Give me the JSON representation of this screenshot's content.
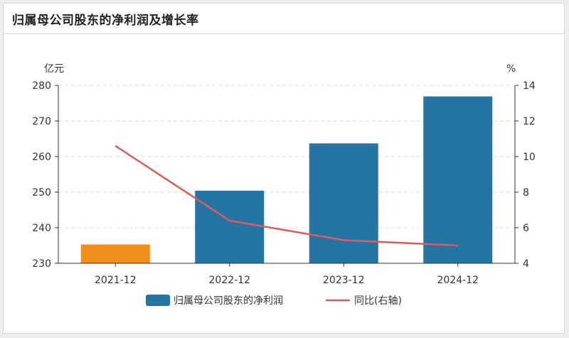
{
  "header": {
    "title": "归属母公司股东的净利润及增长率"
  },
  "chart_data": {
    "type": "bar",
    "categories": [
      "2021-12",
      "2022-12",
      "2023-12",
      "2024-12"
    ],
    "series": [
      {
        "name": "归属母公司股东的净利润",
        "type": "bar",
        "axis": "left",
        "values": [
          235.3,
          250.4,
          263.7,
          276.9
        ],
        "colors": [
          "#f28e1c",
          "#2475a4",
          "#2475a4",
          "#2475a4"
        ]
      },
      {
        "name": "同比(右轴)",
        "type": "line",
        "axis": "right",
        "values": [
          10.6,
          6.4,
          5.3,
          5.0
        ],
        "color": "#e05a5a"
      }
    ],
    "left_axis": {
      "unit": "亿元",
      "ylim": [
        230,
        280
      ],
      "ticks": [
        230,
        240,
        250,
        260,
        270,
        280
      ]
    },
    "right_axis": {
      "unit": "%",
      "ylim": [
        4,
        14
      ],
      "ticks": [
        4,
        6,
        8,
        10,
        12,
        14
      ]
    },
    "grid": true,
    "legend": "bottom-center"
  }
}
